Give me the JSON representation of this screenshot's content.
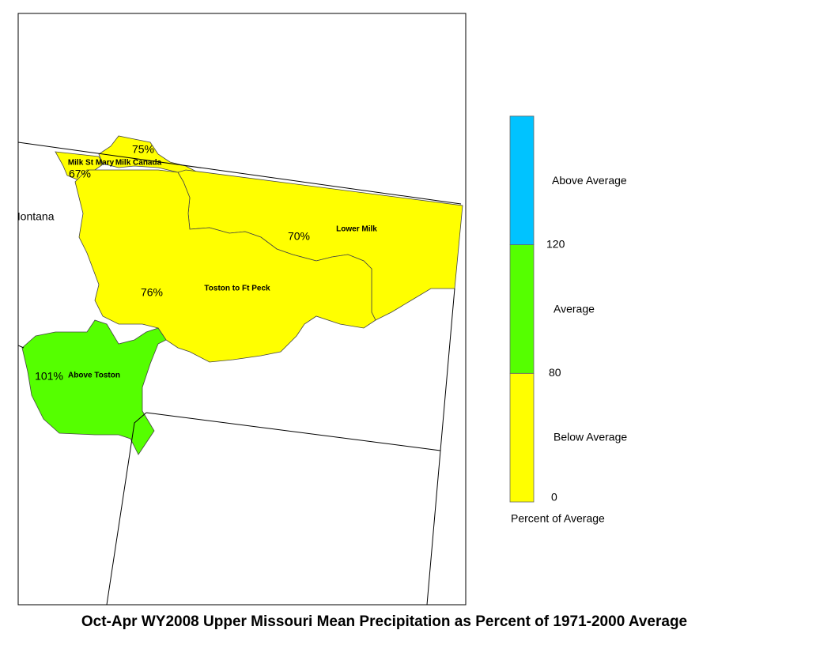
{
  "title": "Oct-Apr WY2008 Upper Missouri Mean Precipitation as Percent of 1971-2000 Average",
  "state_label": "Montana",
  "basins": {
    "names": [
      "Milk St Mary",
      "Milk Canada",
      "Lower Milk",
      "Toston to Ft Peck",
      "Above Toston"
    ],
    "values": [
      67,
      75,
      70,
      76,
      101
    ],
    "value_labels": [
      "67%",
      "75%",
      "70%",
      "76%",
      "101%"
    ]
  },
  "legend": {
    "title": "Percent of Average",
    "categories": [
      "Below Average",
      "Average",
      "Above Average"
    ],
    "colors": [
      "#ffff00",
      "#55ff00",
      "#00c3ff"
    ],
    "thresholds": [
      0,
      80,
      120
    ]
  }
}
